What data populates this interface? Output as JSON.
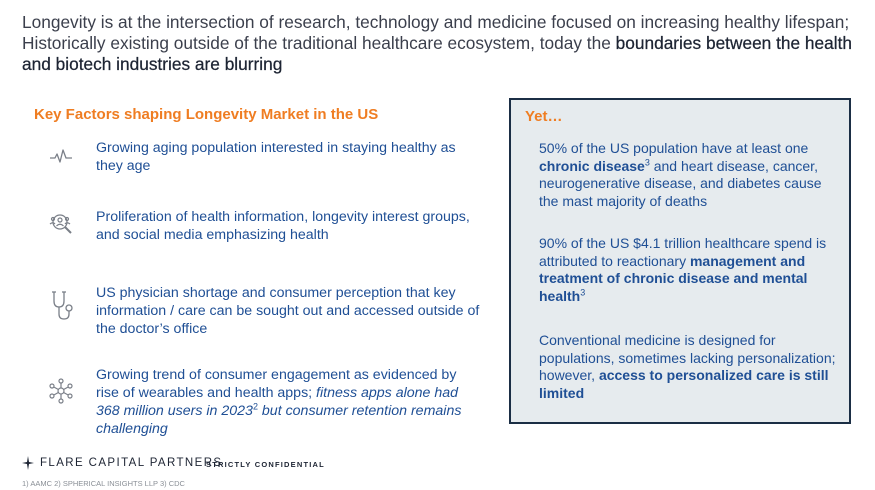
{
  "headline": {
    "part1": "Longevity is at the intersection of research, technology and medicine focused on increasing healthy lifespan; Historically existing outside of the traditional healthcare ecosystem, today the ",
    "part2": "boundaries between the health and biotech industries are blurring"
  },
  "factors": {
    "title": "Key Factors shaping Longevity Market in the US",
    "items": [
      {
        "icon": "pulse-icon",
        "text": "Growing aging population interested in staying healthy as they age"
      },
      {
        "icon": "group-search-icon",
        "text": "Proliferation of health information, longevity interest groups, and social media emphasizing health"
      },
      {
        "icon": "stethoscope-icon",
        "text": "US physician shortage and consumer perception that key information / care can be sought out and accessed outside of the doctor’s office"
      },
      {
        "icon": "network-icon",
        "text_plain": "Growing trend of consumer engagement as evidenced by rise of wearables and health apps; ",
        "text_italic_1": "fitness apps alone had 368 million users in 2023",
        "sup": "2",
        "text_italic_2": " but consumer retention remains challenging"
      }
    ]
  },
  "yet": {
    "title": "Yet…",
    "p1": {
      "a": "50% of the US population have at least one ",
      "b": "chronic disease",
      "sup": "3",
      "c": " and heart disease, cancer, neurogenerative disease, and diabetes cause the mast majority of deaths"
    },
    "p2": {
      "a": "90% of the US $4.1 trillion healthcare spend is attributed to reactionary ",
      "b": "management and treatment of chronic disease and mental health",
      "sup": "3"
    },
    "p3": {
      "a": "Conventional medicine is designed for populations, sometimes lacking personalization; however, ",
      "b": "access to personalized care is still limited"
    }
  },
  "footer": {
    "logo_text": "FLARE CAPITAL PARTNERS",
    "confidential": "STRICTLY CONFIDENTIAL",
    "sources": "1) AAMC 2) SPHERICAL INSIGHTS LLP 3) CDC"
  }
}
